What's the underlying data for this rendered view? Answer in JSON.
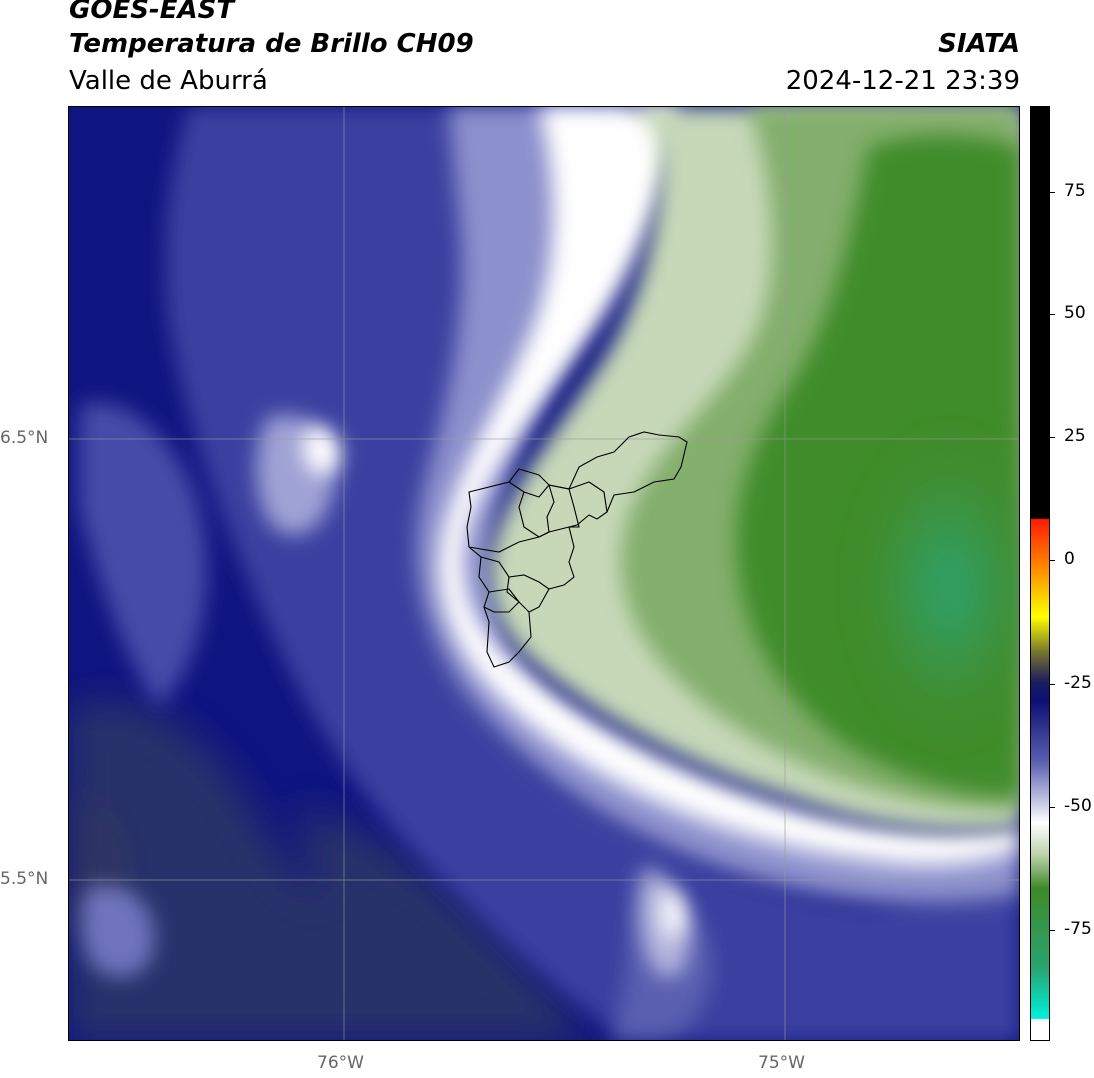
{
  "header": {
    "title_line1": "GOES-EAST",
    "title_line2": "Temperatura de Brillo CH09",
    "subtitle": "Valle de Aburrá",
    "brand": "SIATA",
    "datetime": "2024-12-21 23:39"
  },
  "map": {
    "region": "Valle de Aburrá",
    "lat_ticks": [
      "6.5°N",
      "5.5°N"
    ],
    "lon_ticks": [
      "76°W",
      "75°W"
    ],
    "colors": {
      "cold_navy": "#0c1075",
      "mid_blue": "#4a51a6",
      "lavender": "#a9acd6",
      "white": "#ffffff",
      "light_green": "#c3d7b5",
      "mid_green": "#76a65d",
      "dark_green": "#3f8a2a",
      "teal": "#2aa36e",
      "slate": "#2c3467"
    }
  },
  "colorbar": {
    "ticks": [
      "75",
      "50",
      "25",
      "0",
      "-25",
      "-50",
      "-75"
    ],
    "range": [
      -95,
      91
    ]
  }
}
